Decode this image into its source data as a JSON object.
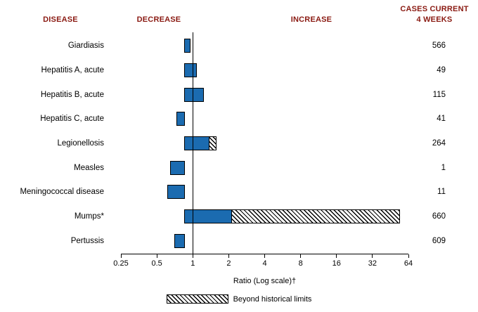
{
  "header": {
    "disease": "DISEASE",
    "decrease": "DECREASE",
    "increase": "INCREASE",
    "cases_line1": "CASES CURRENT",
    "cases_line2": "4 WEEKS"
  },
  "axis": {
    "label": "Ratio (Log scale)†",
    "ticks": [
      "0.25",
      "0.5",
      "1",
      "2",
      "4",
      "8",
      "16",
      "32",
      "64"
    ]
  },
  "legend": {
    "beyond_label": "Beyond historical limits"
  },
  "colors": {
    "bar": "#1b6bb0",
    "header_text": "#8a1a12",
    "text": "#000000",
    "background": "#ffffff"
  },
  "chart_data": {
    "type": "bar",
    "orientation": "horizontal",
    "x_scale": "log2",
    "xlabel": "Ratio (Log scale)†",
    "x_ticks": [
      0.25,
      0.5,
      1,
      2,
      4,
      8,
      16,
      32,
      64
    ],
    "xlim": [
      0.25,
      64
    ],
    "baseline": 1,
    "legend": [
      "Beyond historical limits"
    ],
    "rows": [
      {
        "disease": "Giardiasis",
        "ratio": 1.12,
        "cases": "566"
      },
      {
        "disease": "Hepatitis A, acute",
        "ratio": 1.27,
        "cases": "49"
      },
      {
        "disease": "Hepatitis B, acute",
        "ratio": 1.45,
        "cases": "115"
      },
      {
        "disease": "Hepatitis C, acute",
        "ratio": 0.86,
        "cases": "41"
      },
      {
        "disease": "Legionellosis",
        "ratio": 1.87,
        "beyond_from": 1.62,
        "cases": "264"
      },
      {
        "disease": "Measles",
        "ratio": 0.76,
        "cases": "1"
      },
      {
        "disease": "Meningococcal disease",
        "ratio": 0.72,
        "cases": "11"
      },
      {
        "disease": "Mumps*",
        "ratio": 64,
        "beyond_from": 2.5,
        "cases": "660"
      },
      {
        "disease": "Pertussis",
        "ratio": 0.82,
        "cases": "609"
      }
    ]
  }
}
